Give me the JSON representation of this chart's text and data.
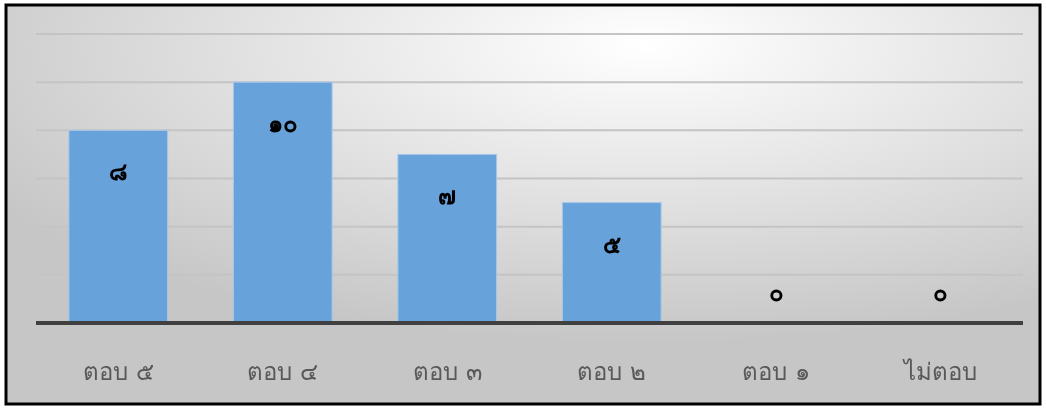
{
  "chart_data": {
    "type": "bar",
    "categories": [
      "ตอบ ๕",
      "ตอบ ๔",
      "ตอบ ๓",
      "ตอบ ๒",
      "ตอบ ๑",
      "ไม่ตอบ"
    ],
    "values": [
      8,
      10,
      7,
      5,
      0,
      0
    ],
    "value_labels": [
      "๘",
      "๑๐",
      "๗",
      "๕",
      "๐",
      "๐"
    ],
    "color": "#68a2da",
    "ylim": [
      0,
      12
    ],
    "yticks": [
      {
        "value": 0,
        "label": null
      },
      {
        "value": 2,
        "label": null
      },
      {
        "value": 4,
        "label": null
      },
      {
        "value": 6,
        "label": null
      },
      {
        "value": 8,
        "label": null
      },
      {
        "value": 10,
        "label": null
      },
      {
        "value": 12,
        "label": null
      }
    ],
    "grid": "y",
    "tick_labels": "x"
  }
}
